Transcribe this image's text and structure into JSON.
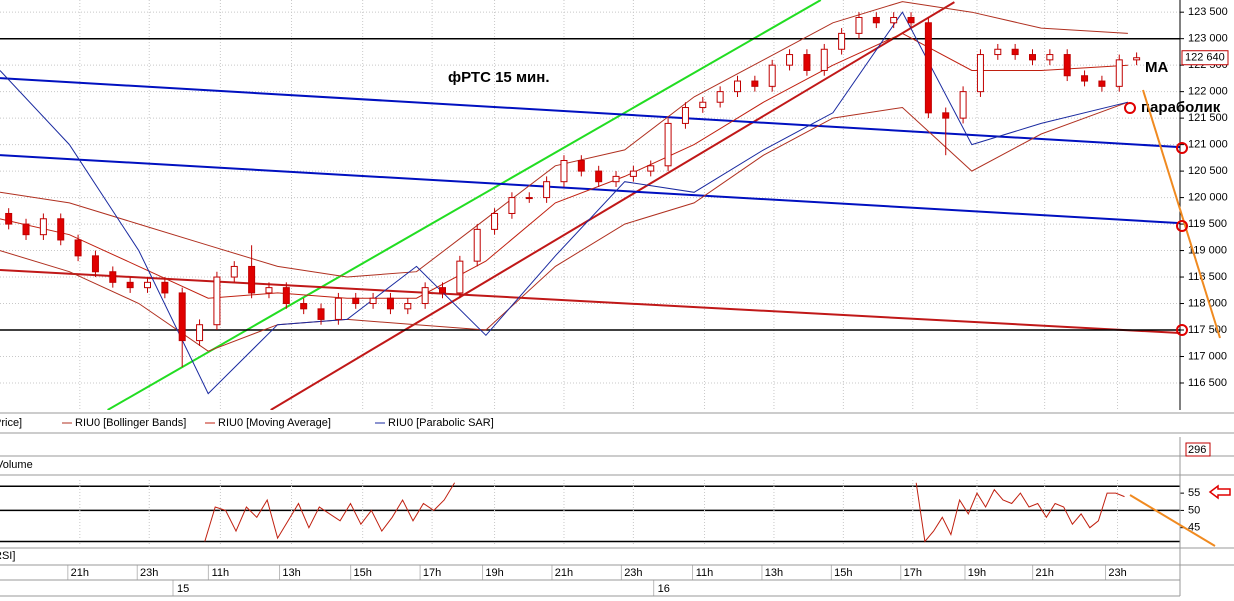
{
  "chart_data": {
    "type": "candlestick",
    "title": "фРТС   15 мин.",
    "annotations": [
      "MA",
      "параболик"
    ],
    "xlim": [
      0,
      68
    ],
    "ylim": [
      115990,
      123730
    ],
    "grid": true,
    "yticks": [
      {
        "value": 116500,
        "label": "116 500"
      },
      {
        "value": 117000,
        "label": "117 000"
      },
      {
        "value": 117500,
        "label": "117 500"
      },
      {
        "value": 118000,
        "label": "118 000"
      },
      {
        "value": 118500,
        "label": "118 500"
      },
      {
        "value": 119000,
        "label": "119 000"
      },
      {
        "value": 119500,
        "label": "119 500"
      },
      {
        "value": 120000,
        "label": "120 000"
      },
      {
        "value": 120500,
        "label": "120 500"
      },
      {
        "value": 121000,
        "label": "121 000"
      },
      {
        "value": 121500,
        "label": "121 500"
      },
      {
        "value": 122000,
        "label": "122 000"
      },
      {
        "value": 122500,
        "label": "122 500"
      },
      {
        "value": 123000,
        "label": "123 000"
      },
      {
        "value": 123500,
        "label": "123 500"
      }
    ],
    "xticks": [
      {
        "value": 4.6,
        "label": "21h"
      },
      {
        "value": 8.6,
        "label": "23h"
      },
      {
        "value": 12.7,
        "label": "11h"
      },
      {
        "value": 16.8,
        "label": "13h"
      },
      {
        "value": 20.9,
        "label": "15h"
      },
      {
        "value": 24.9,
        "label": "17h"
      },
      {
        "value": 28.5,
        "label": "19h"
      },
      {
        "value": 32.5,
        "label": "21h"
      },
      {
        "value": 36.5,
        "label": "23h"
      },
      {
        "value": 40.6,
        "label": "11h"
      },
      {
        "value": 44.6,
        "label": "13h"
      },
      {
        "value": 48.6,
        "label": "15h"
      },
      {
        "value": 52.6,
        "label": "17h"
      },
      {
        "value": 56.3,
        "label": "19h"
      },
      {
        "value": 60.2,
        "label": "21h"
      },
      {
        "value": 64.4,
        "label": "23h"
      }
    ],
    "day_ticks": [
      {
        "value": 10.2,
        "label": "15"
      },
      {
        "value": 37.9,
        "label": "16"
      }
    ],
    "up_color": "#ffffff",
    "down_color": "#e00000",
    "candle_stroke": "#c00000",
    "open": [
      119700,
      119500,
      119300,
      119600,
      119200,
      118900,
      118600,
      118400,
      118300,
      118400,
      118200,
      117300,
      117600,
      118500,
      118700,
      118200,
      118300,
      118000,
      117900,
      117700,
      118100,
      118000,
      118100,
      117900,
      118000,
      118300,
      118200,
      118800,
      119400,
      119700,
      120000,
      120000,
      120300,
      120700,
      120500,
      120300,
      120400,
      120500,
      120600,
      121400,
      121700,
      121800,
      122000,
      122200,
      122100,
      122500,
      122700,
      122400,
      122800,
      123100,
      123400,
      123300,
      123400,
      123300,
      121600,
      121500,
      122000,
      122700,
      122800,
      122700,
      122600,
      122700,
      122300,
      122200,
      122100,
      122600
    ],
    "high": [
      119800,
      119600,
      119700,
      119700,
      119300,
      119000,
      118700,
      118500,
      118500,
      118500,
      118300,
      117700,
      118600,
      118800,
      119100,
      118400,
      118400,
      118100,
      118000,
      118200,
      118200,
      118200,
      118200,
      118100,
      118400,
      118400,
      118900,
      119500,
      119800,
      120100,
      120100,
      120400,
      120800,
      120800,
      120600,
      120500,
      120600,
      120700,
      121500,
      121800,
      121900,
      122100,
      122300,
      122300,
      122600,
      122800,
      122800,
      122900,
      123200,
      123500,
      123500,
      123500,
      123500,
      123400,
      121700,
      122100,
      122800,
      122900,
      122900,
      122800,
      122800,
      122800,
      122400,
      122300,
      122700,
      122740
    ],
    "low": [
      119400,
      119200,
      119200,
      119100,
      118800,
      118500,
      118300,
      118200,
      118200,
      118100,
      116800,
      117200,
      117500,
      118400,
      118100,
      118100,
      117900,
      117800,
      117600,
      117600,
      117900,
      117900,
      117800,
      117800,
      117900,
      118100,
      118100,
      118700,
      119300,
      119600,
      119900,
      119900,
      120200,
      120400,
      120200,
      120200,
      120300,
      120400,
      120500,
      121300,
      121600,
      121700,
      121900,
      122000,
      122000,
      122400,
      122300,
      122300,
      122700,
      123000,
      123200,
      123200,
      123200,
      121500,
      120800,
      121400,
      121900,
      122600,
      122600,
      122500,
      122500,
      122200,
      122100,
      122000,
      122000,
      122500
    ],
    "close": [
      119500,
      119300,
      119600,
      119200,
      118900,
      118600,
      118400,
      118300,
      118400,
      118200,
      117300,
      117600,
      118500,
      118700,
      118200,
      118300,
      118000,
      117900,
      117700,
      118100,
      118000,
      118100,
      117900,
      118000,
      118300,
      118200,
      118800,
      119400,
      119700,
      120000,
      120000,
      120300,
      120700,
      120500,
      120300,
      120400,
      120500,
      120600,
      121400,
      121700,
      121800,
      122000,
      122200,
      122100,
      122500,
      122700,
      122400,
      122800,
      123100,
      123400,
      123300,
      123400,
      123300,
      121600,
      121500,
      122000,
      122700,
      122800,
      122700,
      122600,
      122700,
      122300,
      122200,
      122100,
      122600,
      122640
    ],
    "last_price": {
      "value": 122640,
      "label": "122 640"
    },
    "price_name": "Price]",
    "series": [
      {
        "name": "RIU0 [Bollinger Bands]",
        "color": "#b03020",
        "x": [
          0,
          4,
          8,
          12,
          16,
          20,
          24,
          28,
          32,
          36,
          40,
          44,
          48,
          52,
          56,
          60,
          65
        ],
        "upper": [
          120100,
          119900,
          119500,
          119100,
          118700,
          118500,
          118600,
          119600,
          120600,
          120900,
          121900,
          122600,
          123300,
          123700,
          123500,
          123200,
          123100
        ],
        "lower": [
          119000,
          118600,
          118000,
          117100,
          117600,
          117700,
          117600,
          117500,
          118700,
          119500,
          119900,
          120800,
          121500,
          121700,
          120500,
          121200,
          121800
        ]
      },
      {
        "name": "RIU0 [Moving Average]",
        "color": "#c02010",
        "x": [
          0,
          4,
          8,
          12,
          16,
          20,
          24,
          28,
          32,
          36,
          40,
          44,
          48,
          52,
          56,
          60,
          65
        ],
        "values": [
          119600,
          119300,
          118700,
          118100,
          118200,
          118100,
          118100,
          118800,
          119900,
          120400,
          121000,
          121800,
          122500,
          123100,
          122400,
          122400,
          122500
        ]
      },
      {
        "name": "RIU0 [Parabolic SAR]",
        "color": "#1a2aa0",
        "x": [
          0,
          4,
          8,
          12,
          16,
          20,
          24,
          28,
          32,
          36,
          40,
          44,
          48,
          52,
          56,
          60,
          65
        ],
        "values": [
          122400,
          121000,
          119000,
          116300,
          117600,
          117700,
          118700,
          117400,
          118900,
          120300,
          120100,
          120900,
          121600,
          123500,
          121000,
          121400,
          121800
        ]
      }
    ],
    "trendlines": [
      {
        "color": "#22dd22",
        "x": [
          6.2,
          47.3
        ],
        "y": [
          115990,
          123730
        ]
      },
      {
        "color": "#c01818",
        "x": [
          15.6,
          55.0
        ],
        "y": [
          115990,
          123690
        ]
      },
      {
        "color": "#0010c0",
        "x": [
          0,
          68
        ],
        "y": [
          122255,
          120953
        ]
      },
      {
        "color": "#0010c0",
        "x": [
          0,
          68
        ],
        "y": [
          120802,
          119519
        ]
      },
      {
        "color": "#c01818",
        "x": [
          0,
          68
        ],
        "y": [
          118632,
          117443
        ]
      },
      {
        "color": "#000000",
        "x": [
          0,
          68
        ],
        "y": [
          123000,
          123000
        ]
      },
      {
        "color": "#000000",
        "x": [
          0,
          68
        ],
        "y": [
          117500,
          117500
        ]
      }
    ],
    "volume": {
      "name": "Volume",
      "last": 296
    },
    "rsi": {
      "name": "RSI]",
      "color": "#c02010",
      "ylim": [
        39.7,
        58.8
      ],
      "yticks": [
        45,
        50,
        55
      ],
      "levels": [
        57,
        50,
        41
      ],
      "x": [
        11.8,
        12.4,
        13.0,
        13.6,
        14.2,
        14.8,
        15.4,
        16.0,
        16.6,
        17.2,
        17.8,
        18.4,
        19.0,
        19.6,
        20.2,
        20.8,
        21.4,
        22.0,
        22.6,
        23.2,
        23.8,
        24.4,
        25.0,
        25.6,
        26.2,
        40,
        52.8,
        53.3,
        53.8,
        54.3,
        54.8,
        55.3,
        55.8,
        56.3,
        56.8,
        57.3,
        57.8,
        58.3,
        58.8,
        59.3,
        59.8,
        60.3,
        60.8,
        61.3,
        61.8,
        62.3,
        62.8,
        63.3,
        63.8,
        64.3,
        64.8
      ],
      "values": [
        41,
        51,
        50,
        44,
        51,
        48,
        53,
        42,
        47,
        52,
        45,
        51,
        49,
        47,
        52,
        46,
        50,
        44,
        48,
        53,
        47,
        52,
        50,
        53,
        58,
        null,
        58,
        41,
        44,
        48,
        43,
        53,
        49,
        55,
        51,
        56,
        53,
        52,
        55,
        51,
        52,
        48,
        52,
        51,
        46,
        49,
        45,
        47,
        55,
        55,
        54
      ]
    }
  }
}
